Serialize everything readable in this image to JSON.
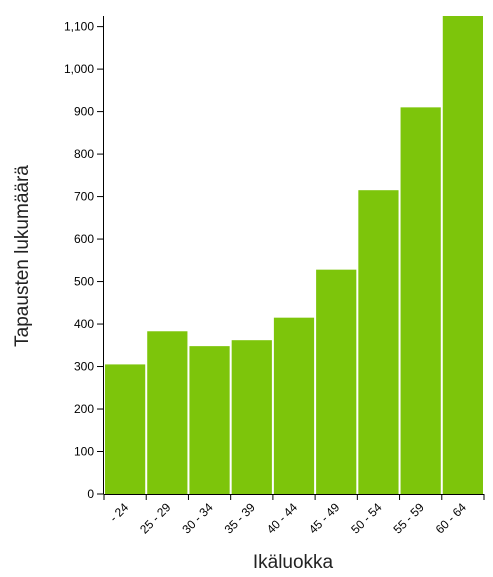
{
  "chart_data": {
    "type": "bar",
    "xlabel": "Ikäluokka",
    "ylabel": "Tapausten lukumäärä",
    "categories": [
      "- 24",
      "25 - 29",
      "30 - 34",
      "35 - 39",
      "40 - 44",
      "45 - 49",
      "50 - 54",
      "55 - 59",
      "60 - 64"
    ],
    "values": [
      305,
      383,
      348,
      362,
      415,
      528,
      715,
      910,
      1125
    ],
    "ylim": [
      0,
      1125
    ],
    "yticks": [
      0,
      100,
      200,
      300,
      400,
      500,
      600,
      700,
      800,
      900,
      1000,
      1100
    ],
    "ytick_labels": [
      "0",
      "100",
      "200",
      "300",
      "400",
      "500",
      "600",
      "700",
      "800",
      "900",
      "1,000",
      "1,100"
    ],
    "bar_color": "#7dc50b",
    "grid": false,
    "legend": "none"
  }
}
